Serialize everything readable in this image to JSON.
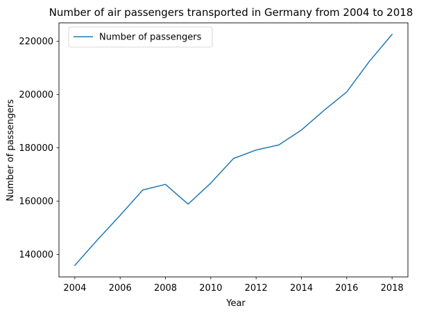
{
  "chart_data": {
    "type": "line",
    "title": "Number of air passengers transported in Germany from 2004 to 2018",
    "xlabel": "Year",
    "ylabel": "Number of passengers",
    "x": [
      2004,
      2005,
      2006,
      2007,
      2008,
      2009,
      2010,
      2011,
      2012,
      2013,
      2014,
      2015,
      2016,
      2017,
      2018
    ],
    "series": [
      {
        "name": "Number of passengers",
        "color": "#1f77b4",
        "values": [
          135900,
          145500,
          154700,
          164200,
          166300,
          158900,
          166800,
          176000,
          179200,
          181100,
          186700,
          194100,
          201000,
          212500,
          222600
        ]
      }
    ],
    "xticks": [
      "2004",
      "2006",
      "2008",
      "2010",
      "2012",
      "2014",
      "2016",
      "2018"
    ],
    "yticks": [
      "140000",
      "160000",
      "180000",
      "200000",
      "220000"
    ],
    "xlim": [
      2003.3,
      2018.7
    ],
    "ylim": [
      131565,
      226935
    ],
    "grid": false,
    "legend_position": "top-left"
  }
}
